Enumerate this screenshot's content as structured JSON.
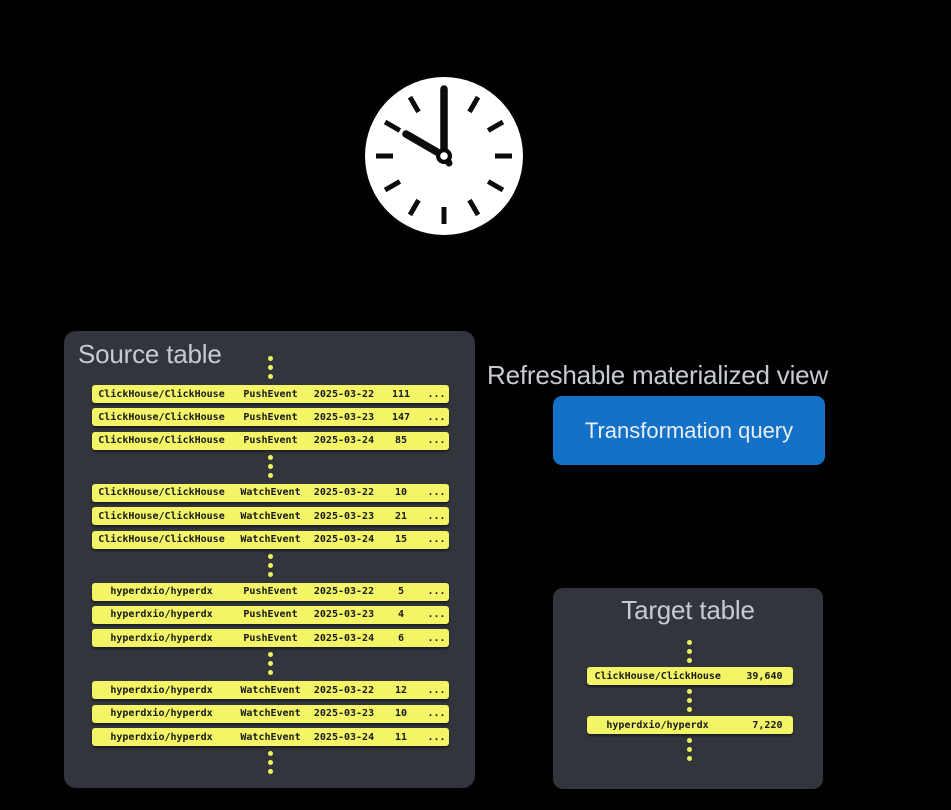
{
  "diagram": {
    "clock": {
      "time_shown": "10:00"
    },
    "source_table": {
      "title": "Source table",
      "row_groups": [
        {
          "rows": [
            {
              "repo": "ClickHouse/ClickHouse",
              "event": "PushEvent",
              "date": "2025-03-22",
              "count": "111",
              "more": "..."
            },
            {
              "repo": "ClickHouse/ClickHouse",
              "event": "PushEvent",
              "date": "2025-03-23",
              "count": "147",
              "more": "..."
            },
            {
              "repo": "ClickHouse/ClickHouse",
              "event": "PushEvent",
              "date": "2025-03-24",
              "count": "85",
              "more": "..."
            }
          ]
        },
        {
          "rows": [
            {
              "repo": "ClickHouse/ClickHouse",
              "event": "WatchEvent",
              "date": "2025-03-22",
              "count": "10",
              "more": "..."
            },
            {
              "repo": "ClickHouse/ClickHouse",
              "event": "WatchEvent",
              "date": "2025-03-23",
              "count": "21",
              "more": "..."
            },
            {
              "repo": "ClickHouse/ClickHouse",
              "event": "WatchEvent",
              "date": "2025-03-24",
              "count": "15",
              "more": "..."
            }
          ]
        },
        {
          "rows": [
            {
              "repo": "hyperdxio/hyperdx",
              "event": "PushEvent",
              "date": "2025-03-22",
              "count": "5",
              "more": "..."
            },
            {
              "repo": "hyperdxio/hyperdx",
              "event": "PushEvent",
              "date": "2025-03-23",
              "count": "4",
              "more": "..."
            },
            {
              "repo": "hyperdxio/hyperdx",
              "event": "PushEvent",
              "date": "2025-03-24",
              "count": "6",
              "more": "..."
            }
          ]
        },
        {
          "rows": [
            {
              "repo": "hyperdxio/hyperdx",
              "event": "WatchEvent",
              "date": "2025-03-22",
              "count": "12",
              "more": "..."
            },
            {
              "repo": "hyperdxio/hyperdx",
              "event": "WatchEvent",
              "date": "2025-03-23",
              "count": "10",
              "more": "..."
            },
            {
              "repo": "hyperdxio/hyperdx",
              "event": "WatchEvent",
              "date": "2025-03-24",
              "count": "11",
              "more": "..."
            }
          ]
        }
      ]
    },
    "view": {
      "heading": "Refreshable materialized view",
      "button_label": "Transformation query"
    },
    "target_table": {
      "title": "Target table",
      "rows": [
        {
          "repo": "ClickHouse/ClickHouse",
          "value": "39,640"
        },
        {
          "repo": "hyperdxio/hyperdx",
          "value": "7,220"
        }
      ]
    },
    "colors": {
      "background": "#010102",
      "panel": "#32363c",
      "row_yellow": "#f3f466",
      "dot_yellow": "#eff160",
      "accent_blue": "#1371c8",
      "title_gray": "#c6cbd1",
      "row_text": "#17191c",
      "clock_face": "#ffffff",
      "clock_hands": "#0b0b0b"
    }
  }
}
